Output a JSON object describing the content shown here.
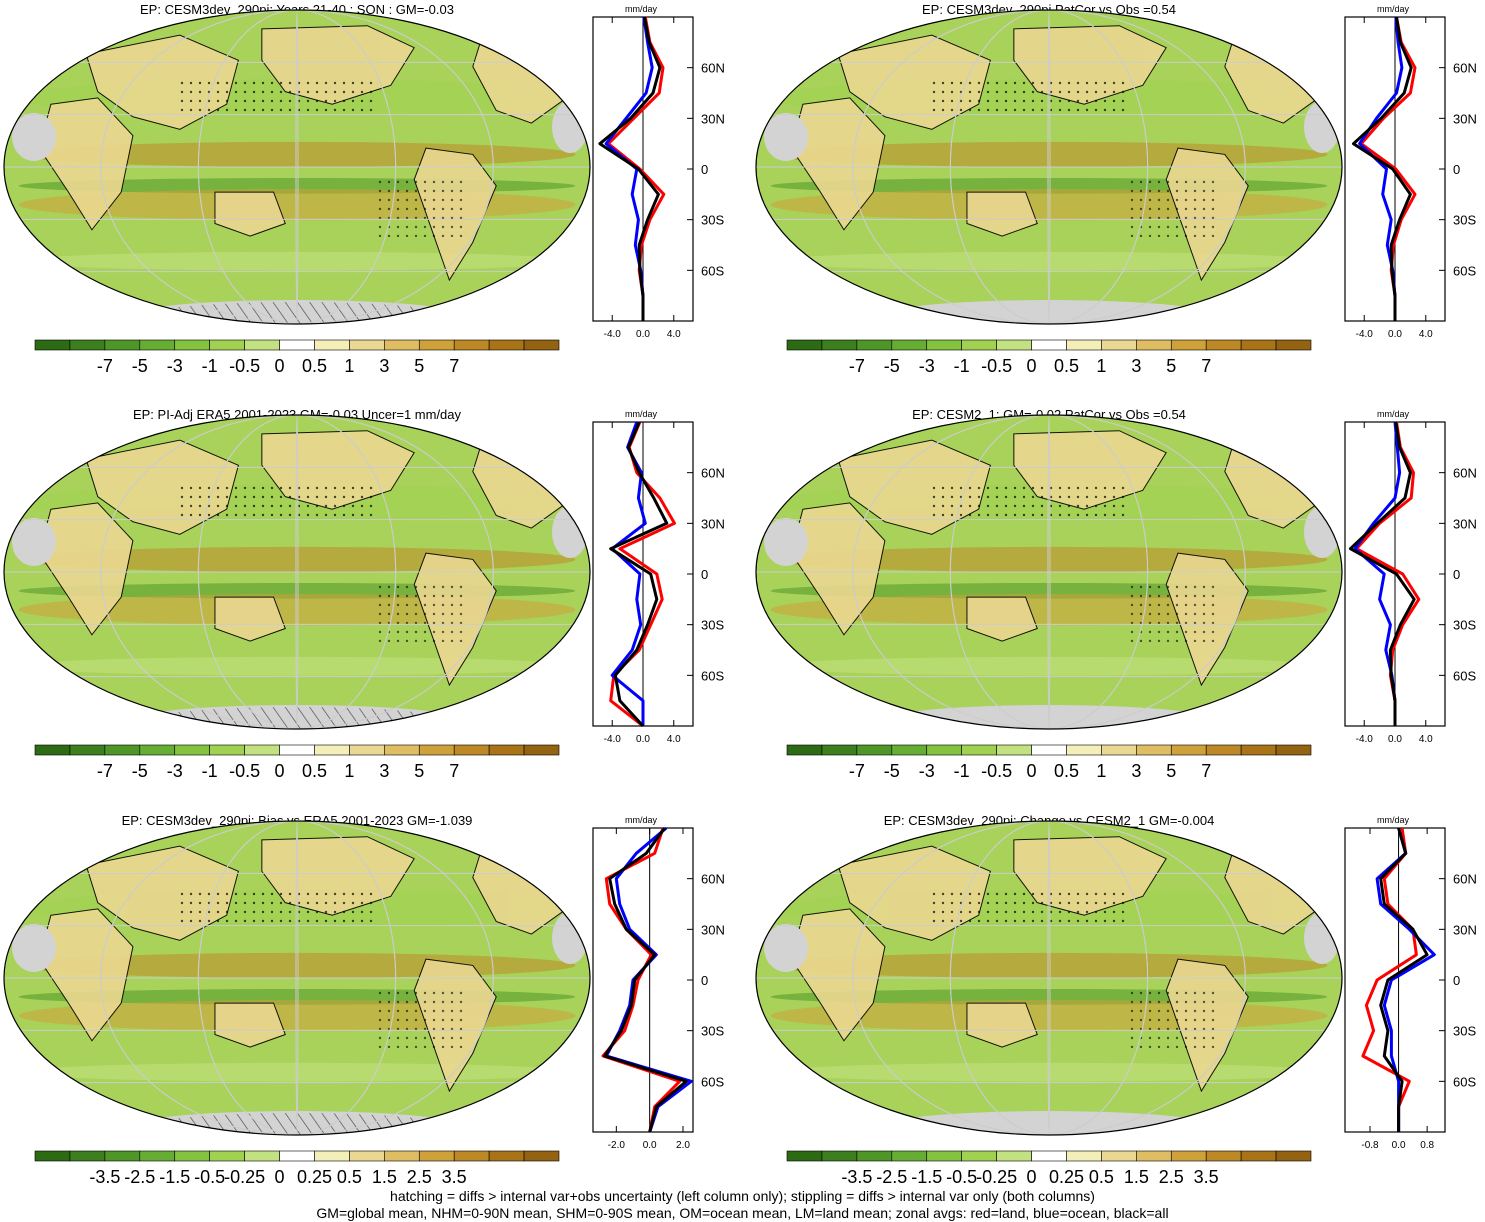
{
  "footer": {
    "line1": "hatching = diffs > internal var+obs uncertainty (left column only); stippling = diffs > internal var only (both columns)",
    "line2": "GM=global mean, NHM=0-90N mean, SHM=0-90S mean, OM=ocean mean, LM=land mean; zonal avgs: red=land, blue=ocean, black=all"
  },
  "colors": {
    "ocean_green": "#a8d25a",
    "land_grey": "#d3d3d3",
    "line_land": "#ff0000",
    "line_ocean": "#0000ff",
    "line_all": "#000000",
    "palette": [
      "#2d6a14",
      "#3d7f1e",
      "#4e9628",
      "#66ad33",
      "#84c23f",
      "#a0d150",
      "#c2e281",
      "#ffffff",
      "#f4eeb9",
      "#ead791",
      "#dfbd63",
      "#cfa13a",
      "#bd8826",
      "#a97418",
      "#946312"
    ]
  },
  "chart_data": [
    {
      "type": "heatmap",
      "title": "EP: CESM3dev_290pi: Years 21-40 : SON : GM=-0.03",
      "units": "mm/day",
      "colorbar_labels": [
        "-7",
        "-5",
        "-3",
        "-1",
        "-0.5",
        "0",
        "0.5",
        "1",
        "3",
        "5",
        "7"
      ],
      "zonal_ticks": [
        "-4.0",
        "0.0",
        "4.0"
      ],
      "zonal_xlim": [
        -6.5,
        6.5
      ],
      "lat_labels": [
        "60N",
        "30N",
        "0",
        "30S",
        "60S"
      ],
      "markings": {
        "hatching": true,
        "stippling": true
      },
      "series": [
        {
          "values": [
            0.3,
            0.9,
            2.6,
            2.1,
            -1.2,
            -4.5,
            -0.4,
            2.7,
            0.9,
            -0.2,
            -0.5,
            0.0,
            0.0
          ]
        },
        {
          "values": [
            0.1,
            0.6,
            1.2,
            0.4,
            -2.2,
            -4.8,
            -0.8,
            -1.4,
            -0.6,
            -1.0,
            -0.3,
            0.0,
            0.0
          ]
        },
        {
          "values": [
            0.2,
            0.8,
            2.2,
            1.3,
            -1.6,
            -5.6,
            -0.6,
            2.0,
            0.6,
            -0.5,
            -0.4,
            0.0,
            0.0
          ]
        }
      ]
    },
    {
      "type": "heatmap",
      "title": "EP: CESM3dev_290pi PatCor vs Obs =0.54",
      "units": "mm/day",
      "colorbar_labels": [
        "-7",
        "-5",
        "-3",
        "-1",
        "-0.5",
        "0",
        "0.5",
        "1",
        "3",
        "5",
        "7"
      ],
      "zonal_ticks": [
        "-4.0",
        "0.0",
        "4.0"
      ],
      "zonal_xlim": [
        -6.5,
        6.5
      ],
      "lat_labels": [
        "60N",
        "30N",
        "0",
        "30S",
        "60S"
      ],
      "markings": {
        "hatching": false,
        "stippling": true
      },
      "series": [
        {
          "values": [
            0.2,
            0.8,
            2.6,
            2.0,
            -1.5,
            -4.4,
            0.1,
            2.6,
            0.8,
            -0.2,
            -0.5,
            0.0,
            0.0
          ]
        },
        {
          "values": [
            0.1,
            0.4,
            0.9,
            0.2,
            -2.4,
            -4.6,
            -1.1,
            -1.6,
            -0.5,
            -1.0,
            -0.3,
            0.0,
            0.0
          ]
        },
        {
          "values": [
            0.2,
            0.7,
            2.1,
            1.2,
            -1.8,
            -5.4,
            -0.3,
            2.0,
            0.6,
            -0.5,
            -0.4,
            0.0,
            0.0
          ]
        }
      ]
    },
    {
      "type": "heatmap",
      "title": "EP: PI-Adj ERA5 2001-2023 GM=-0.03 Uncer=1 mm/day",
      "units": "mm/day",
      "colorbar_labels": [
        "-7",
        "-5",
        "-3",
        "-1",
        "-0.5",
        "0",
        "0.5",
        "1",
        "3",
        "5",
        "7"
      ],
      "zonal_ticks": [
        "-4.0",
        "0.0",
        "4.0"
      ],
      "zonal_xlim": [
        -6.5,
        6.5
      ],
      "lat_labels": [
        "60N",
        "30N",
        "0",
        "30S",
        "60S"
      ],
      "markings": {
        "hatching": true,
        "stippling": true
      },
      "series": [
        {
          "values": [
            -0.4,
            -1.8,
            -0.8,
            2.2,
            4.1,
            -3.0,
            1.8,
            2.5,
            1.0,
            -0.5,
            -3.8,
            -4.2,
            0.0
          ]
        },
        {
          "values": [
            -0.8,
            -2.0,
            -0.2,
            -0.6,
            0.3,
            -4.0,
            -0.4,
            -0.8,
            -0.3,
            -1.4,
            -4.0,
            0.0,
            0.0
          ]
        },
        {
          "values": [
            -0.5,
            -1.9,
            -0.5,
            1.4,
            3.1,
            -4.2,
            1.0,
            1.8,
            0.6,
            -0.8,
            -3.6,
            -3.0,
            0.0
          ]
        }
      ]
    },
    {
      "type": "heatmap",
      "title": "EP: CESM2_1: GM=-0.02 PatCor vs Obs =0.54",
      "units": "mm/day",
      "colorbar_labels": [
        "-7",
        "-5",
        "-3",
        "-1",
        "-0.5",
        "0",
        "0.5",
        "1",
        "3",
        "5",
        "7"
      ],
      "zonal_ticks": [
        "-4.0",
        "0.0",
        "4.0"
      ],
      "zonal_xlim": [
        -6.5,
        6.5
      ],
      "lat_labels": [
        "60N",
        "30N",
        "0",
        "30S",
        "60S"
      ],
      "markings": {
        "hatching": false,
        "stippling": true
      },
      "series": [
        {
          "values": [
            0.2,
            0.7,
            2.4,
            2.1,
            -2.0,
            -5.0,
            1.0,
            3.1,
            1.0,
            -0.3,
            -0.6,
            0.0,
            0.0
          ]
        },
        {
          "values": [
            0.0,
            0.3,
            0.6,
            0.0,
            -2.8,
            -5.2,
            -1.4,
            -2.0,
            -0.6,
            -1.2,
            -0.4,
            0.0,
            0.0
          ]
        },
        {
          "values": [
            0.1,
            0.6,
            2.0,
            1.3,
            -2.3,
            -5.8,
            0.2,
            2.5,
            0.7,
            -0.6,
            -0.5,
            0.0,
            0.0
          ]
        }
      ]
    },
    {
      "type": "heatmap",
      "title": "EP: CESM3dev_290pi: Bias vs ERA5 2001-2023  GM=-1.039",
      "units": "mm/day",
      "colorbar_labels": [
        "-3.5",
        "-2.5",
        "-1.5",
        "-0.5",
        "-0.25",
        "0",
        "0.25",
        "0.5",
        "1.5",
        "2.5",
        "3.5"
      ],
      "zonal_ticks": [
        "-2.0",
        "0.0",
        "2.0"
      ],
      "zonal_xlim": [
        -3.4,
        2.6
      ],
      "lat_labels": [
        "60N",
        "30N",
        "0",
        "30S",
        "60S"
      ],
      "markings": {
        "hatching": true,
        "stippling": true
      },
      "series": [
        {
          "values": [
            0.8,
            0.3,
            -2.6,
            -2.4,
            -1.4,
            0.1,
            -0.7,
            -1.0,
            -1.5,
            -2.8,
            1.8,
            0.3,
            0.0
          ]
        },
        {
          "values": [
            1.0,
            -0.8,
            -2.0,
            -1.8,
            -1.2,
            0.4,
            -1.0,
            -1.2,
            -1.8,
            -2.6,
            2.5,
            0.5,
            0.0
          ]
        },
        {
          "values": [
            0.9,
            -0.2,
            -2.4,
            -2.1,
            -1.4,
            0.3,
            -0.9,
            -1.1,
            -1.7,
            -2.7,
            2.2,
            0.4,
            0.0
          ]
        }
      ]
    },
    {
      "type": "heatmap",
      "title": "EP: CESM3dev_290pi: Change vs CESM2_1 GM=-0.004",
      "units": "mm/day",
      "colorbar_labels": [
        "-3.5",
        "-2.5",
        "-1.5",
        "-0.5",
        "-0.25",
        "0",
        "0.25",
        "0.5",
        "1.5",
        "2.5",
        "3.5"
      ],
      "zonal_ticks": [
        "-0.8",
        "0.0",
        "0.8"
      ],
      "zonal_xlim": [
        -1.5,
        1.3
      ],
      "lat_labels": [
        "60N",
        "30N",
        "0",
        "30S",
        "60S"
      ],
      "markings": {
        "hatching": false,
        "stippling": true
      },
      "series": [
        {
          "values": [
            0.1,
            0.2,
            -0.4,
            -0.3,
            0.4,
            0.5,
            -0.6,
            -0.9,
            -0.7,
            -1.0,
            0.3,
            0.0,
            0.0
          ]
        },
        {
          "values": [
            0.0,
            0.2,
            -0.6,
            -0.5,
            0.3,
            1.0,
            -0.2,
            -0.4,
            -0.2,
            -0.2,
            0.0,
            0.0,
            0.0
          ]
        },
        {
          "values": [
            0.0,
            0.2,
            -0.5,
            -0.4,
            0.4,
            0.8,
            -0.3,
            -0.5,
            -0.3,
            -0.4,
            0.1,
            0.0,
            0.0
          ]
        }
      ]
    }
  ]
}
